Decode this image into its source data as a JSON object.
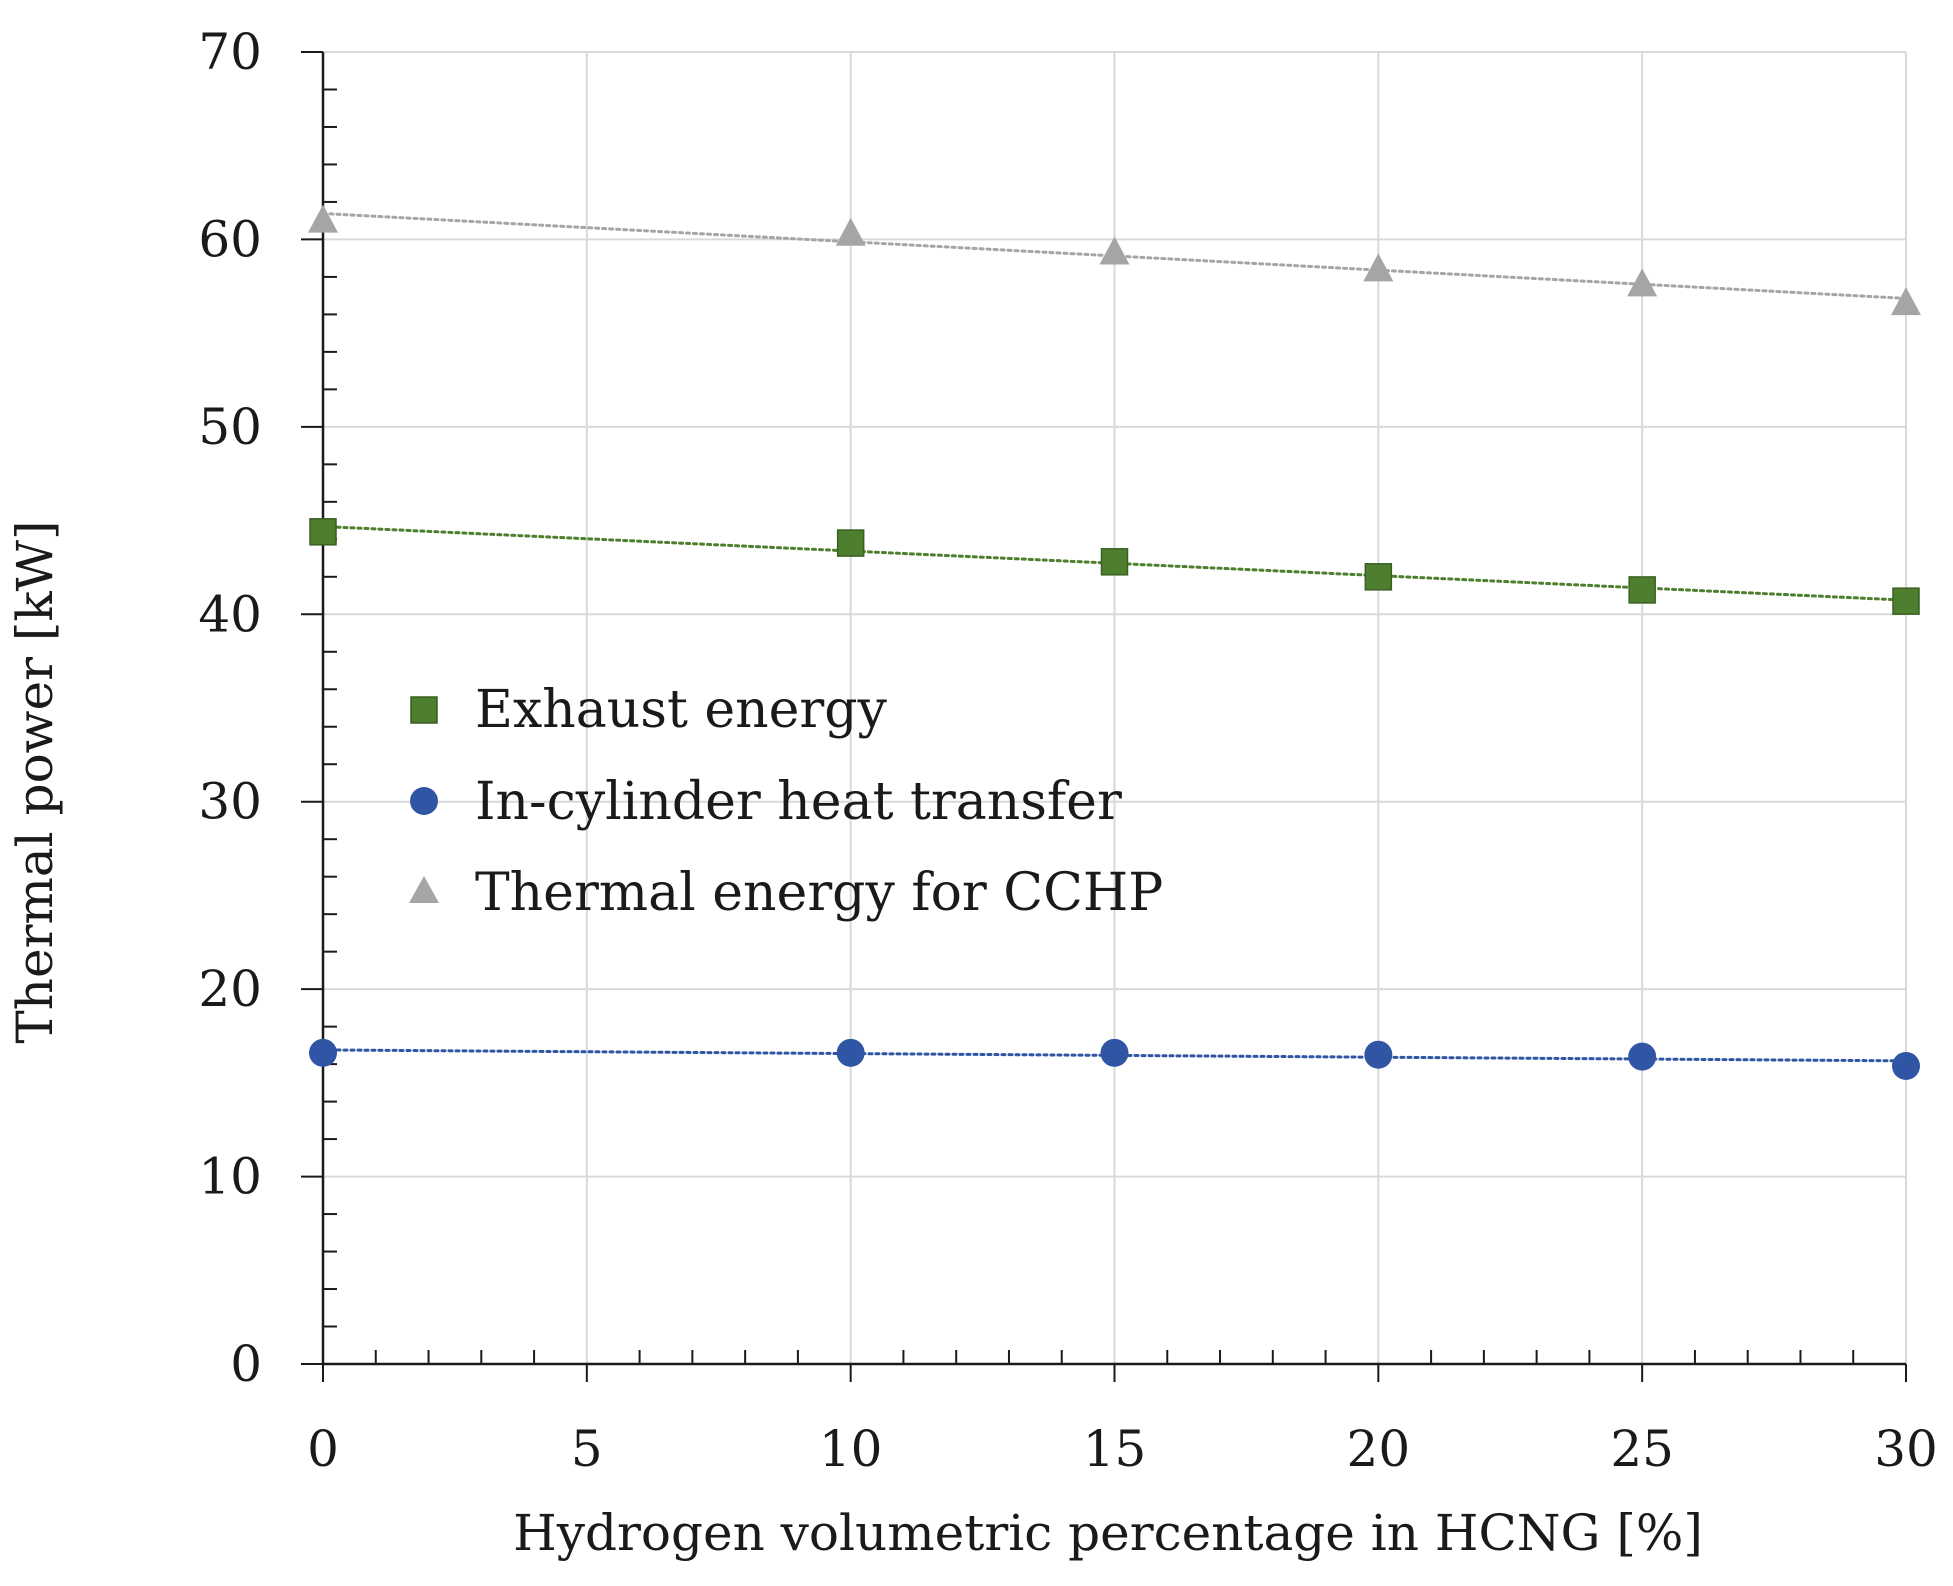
{
  "chart_data": {
    "type": "scatter",
    "title": "",
    "xlabel": "Hydrogen volumetric percentage in HCNG [%]",
    "ylabel": "Thermal power [kW]",
    "xlim": [
      0,
      30
    ],
    "ylim": [
      0,
      70
    ],
    "xticks": [
      0,
      5,
      10,
      15,
      20,
      25,
      30
    ],
    "yticks": [
      0,
      10,
      20,
      30,
      40,
      50,
      60,
      70
    ],
    "grid": true,
    "legend_position": "center-left",
    "trendlines": "linear, dotted",
    "series": [
      {
        "name": "Exhaust energy",
        "marker": "square",
        "color": "#4e7f2f",
        "x": [
          0,
          10,
          15,
          20,
          25,
          30
        ],
        "y": [
          44.4,
          43.8,
          42.8,
          42.0,
          41.3,
          40.7
        ]
      },
      {
        "name": "In-cylinder heat transfer",
        "marker": "circle",
        "color": "#2f55a4",
        "x": [
          0,
          10,
          15,
          20,
          25,
          30
        ],
        "y": [
          16.6,
          16.6,
          16.6,
          16.5,
          16.4,
          15.9
        ]
      },
      {
        "name": "Thermal energy for CCHP",
        "marker": "triangle",
        "color": "#a5a5a5",
        "x": [
          0,
          10,
          15,
          20,
          25,
          30
        ],
        "y": [
          61.0,
          60.3,
          59.3,
          58.4,
          57.6,
          56.6
        ]
      }
    ]
  }
}
